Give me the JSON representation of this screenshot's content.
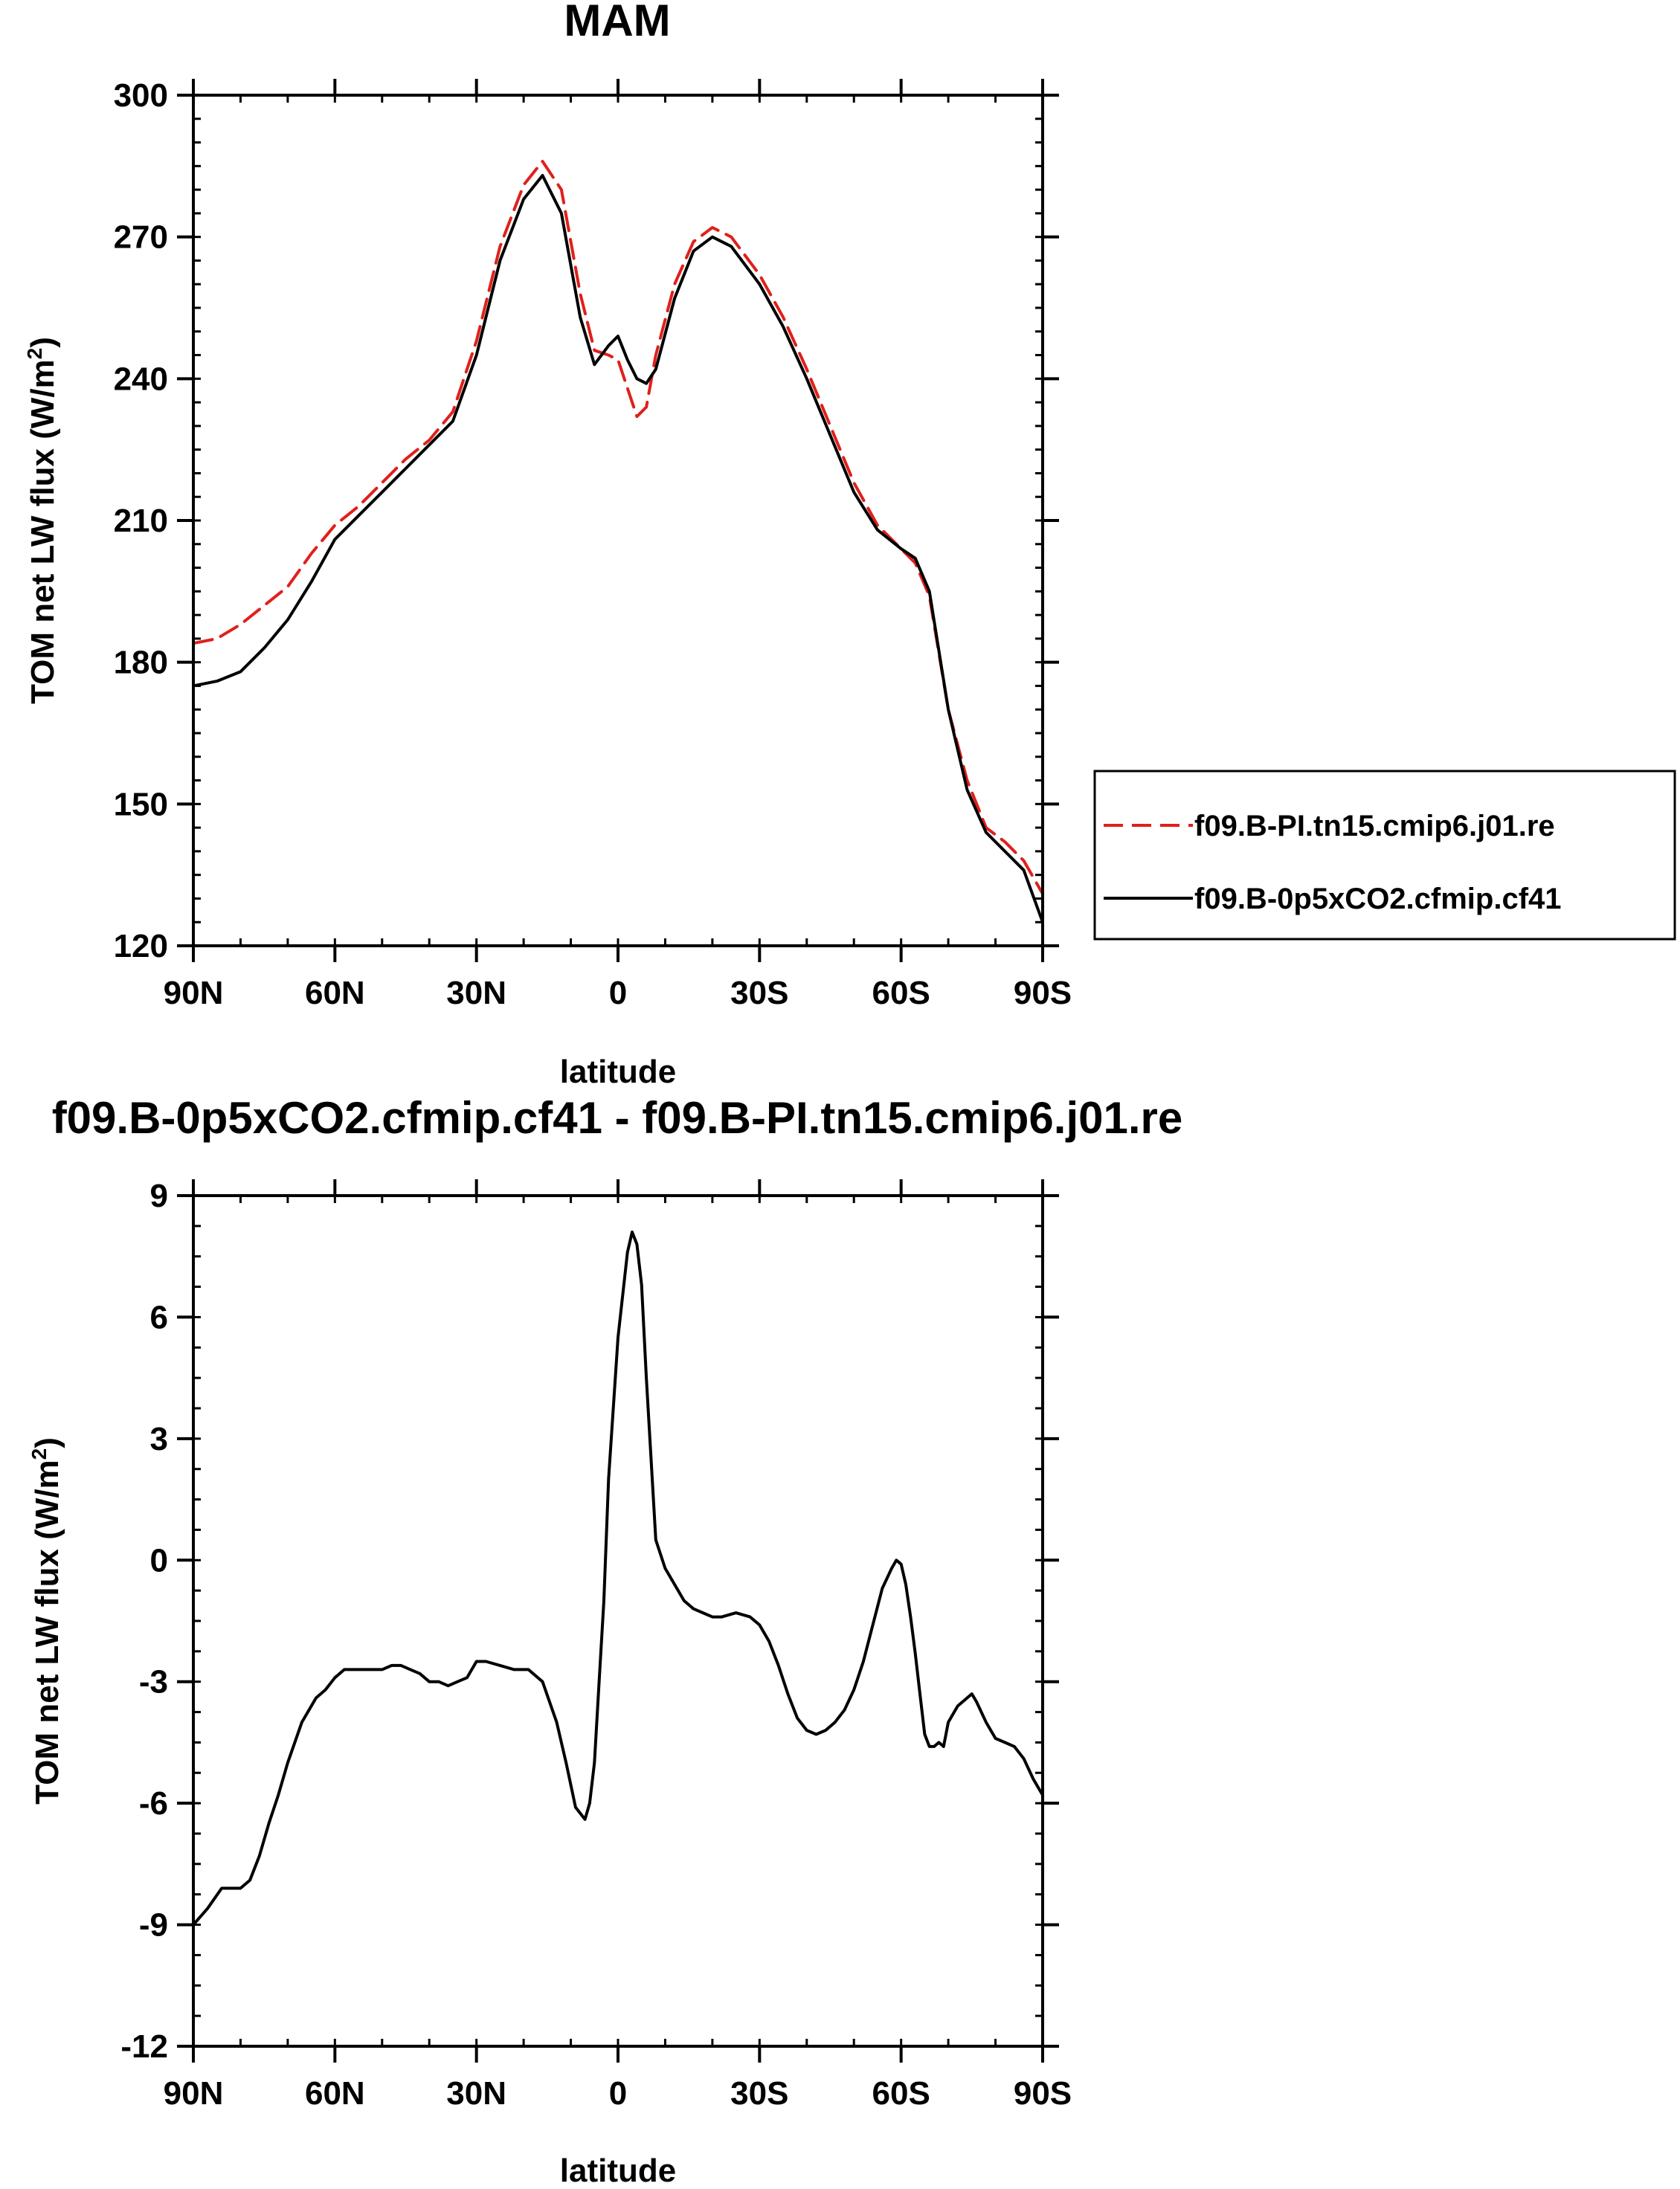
{
  "chart_data": [
    {
      "type": "line",
      "title": "MAM",
      "xlabel": "latitude",
      "ylabel": "TOM net LW flux",
      "yunits": [
        "(W/m",
        "2",
        ")"
      ],
      "x_tick_values": [
        -90,
        -60,
        -30,
        0,
        30,
        60,
        90
      ],
      "x_tick_labels": [
        "90N",
        "60N",
        "30N",
        "0",
        "30S",
        "60S",
        "90S"
      ],
      "xlim": [
        -90,
        90
      ],
      "y_tick_values": [
        120,
        150,
        180,
        210,
        240,
        270,
        300
      ],
      "y_tick_labels": [
        "120",
        "150",
        "180",
        "210",
        "240",
        "270",
        "300"
      ],
      "ylim": [
        120,
        300
      ],
      "legend_position": "right",
      "series": [
        {
          "name": "f09.B-PI.tn15.cmip6.j01.re",
          "color": "#e0201b",
          "dashed": true,
          "x": [
            -90,
            -85,
            -80,
            -75,
            -70,
            -65,
            -60,
            -55,
            -50,
            -45,
            -40,
            -35,
            -30,
            -25,
            -20,
            -16,
            -12,
            -8,
            -5,
            -2,
            0,
            2,
            4,
            6,
            8,
            12,
            16,
            20,
            24,
            30,
            35,
            40,
            45,
            50,
            55,
            60,
            63,
            66,
            70,
            74,
            78,
            82,
            86,
            90
          ],
          "y": [
            184,
            185,
            188,
            192,
            196,
            203,
            209,
            213,
            218,
            223,
            227,
            233,
            248,
            268,
            281,
            286,
            280,
            258,
            246,
            245,
            244,
            238,
            232,
            234,
            245,
            260,
            269,
            272,
            270,
            262,
            253,
            242,
            230,
            218,
            209,
            204,
            201,
            194,
            170,
            155,
            145,
            142,
            138,
            131
          ]
        },
        {
          "name": "f09.B-0p5xCO2.cfmip.cf41",
          "color": "#000000",
          "dashed": false,
          "x": [
            -90,
            -85,
            -80,
            -75,
            -70,
            -65,
            -60,
            -55,
            -50,
            -45,
            -40,
            -35,
            -30,
            -25,
            -20,
            -16,
            -12,
            -8,
            -5,
            -2,
            0,
            2,
            4,
            6,
            8,
            12,
            16,
            20,
            24,
            30,
            35,
            40,
            45,
            50,
            55,
            60,
            63,
            66,
            70,
            74,
            78,
            82,
            86,
            90
          ],
          "y": [
            175,
            176,
            178,
            183,
            189,
            197,
            206,
            211,
            216,
            221,
            226,
            231,
            245,
            265,
            278,
            283,
            275,
            253,
            243,
            247,
            249,
            244,
            240,
            239,
            242,
            257,
            267,
            270,
            268,
            260,
            251,
            240,
            228,
            216,
            208,
            204,
            202,
            195,
            170,
            153,
            144,
            140,
            136,
            125
          ]
        }
      ]
    },
    {
      "type": "line",
      "title": "f09.B-0p5xCO2.cfmip.cf41 - f09.B-PI.tn15.cmip6.j01.re",
      "xlabel": "latitude",
      "ylabel": "TOM net LW flux",
      "yunits": [
        "(W/m",
        "2",
        ")"
      ],
      "x_tick_values": [
        -90,
        -60,
        -30,
        0,
        30,
        60,
        90
      ],
      "x_tick_labels": [
        "90N",
        "60N",
        "30N",
        "0",
        "30S",
        "60S",
        "90S"
      ],
      "xlim": [
        -90,
        90
      ],
      "y_tick_values": [
        -12,
        -9,
        -6,
        -3,
        0,
        3,
        6,
        9
      ],
      "y_tick_labels": [
        "-12",
        "-9",
        "-6",
        "-3",
        "0",
        "3",
        "6",
        "9"
      ],
      "ylim": [
        -12,
        9
      ],
      "series": [
        {
          "name": "f09.B-0p5xCO2.cfmip.cf41 - f09.B-PI.tn15.cmip6.j01.re",
          "color": "#000000",
          "dashed": false,
          "x": [
            -90,
            -87,
            -84,
            -82,
            -80,
            -78,
            -76,
            -74,
            -72,
            -70,
            -67,
            -64,
            -62,
            -60,
            -58,
            -56,
            -54,
            -52,
            -50,
            -48,
            -46,
            -44,
            -42,
            -40,
            -38,
            -36,
            -34,
            -32,
            -30,
            -28,
            -25,
            -22,
            -19,
            -16,
            -13,
            -11,
            -9,
            -7,
            -6,
            -5,
            -4,
            -3,
            -2,
            0,
            2,
            3,
            4,
            5,
            6,
            8,
            10,
            12,
            14,
            16,
            18,
            20,
            22,
            25,
            28,
            30,
            32,
            34,
            36,
            38,
            40,
            42,
            44,
            46,
            48,
            50,
            52,
            54,
            56,
            58,
            59,
            60,
            61,
            62,
            63,
            64,
            65,
            66,
            67,
            68,
            69,
            70,
            72,
            74,
            75,
            76,
            78,
            80,
            82,
            84,
            86,
            88,
            90
          ],
          "y": [
            -9.0,
            -8.6,
            -8.1,
            -8.1,
            -8.1,
            -7.9,
            -7.3,
            -6.5,
            -5.8,
            -5.0,
            -4.0,
            -3.4,
            -3.2,
            -2.9,
            -2.7,
            -2.7,
            -2.7,
            -2.7,
            -2.7,
            -2.6,
            -2.6,
            -2.7,
            -2.8,
            -3.0,
            -3.0,
            -3.1,
            -3.0,
            -2.9,
            -2.5,
            -2.5,
            -2.6,
            -2.7,
            -2.7,
            -3.0,
            -4.0,
            -5.0,
            -6.1,
            -6.4,
            -6.0,
            -5.0,
            -3.0,
            -1.0,
            2.0,
            5.5,
            7.6,
            8.1,
            7.8,
            6.8,
            4.5,
            0.5,
            -0.2,
            -0.6,
            -1.0,
            -1.2,
            -1.3,
            -1.4,
            -1.4,
            -1.3,
            -1.4,
            -1.6,
            -2.0,
            -2.6,
            -3.3,
            -3.9,
            -4.2,
            -4.3,
            -4.2,
            -4.0,
            -3.7,
            -3.2,
            -2.5,
            -1.6,
            -0.7,
            -0.2,
            0.0,
            -0.1,
            -0.6,
            -1.4,
            -2.3,
            -3.3,
            -4.3,
            -4.6,
            -4.6,
            -4.5,
            -4.6,
            -4.0,
            -3.6,
            -3.4,
            -3.3,
            -3.5,
            -4.0,
            -4.4,
            -4.5,
            -4.6,
            -4.9,
            -5.4,
            -5.8
          ]
        }
      ]
    }
  ]
}
